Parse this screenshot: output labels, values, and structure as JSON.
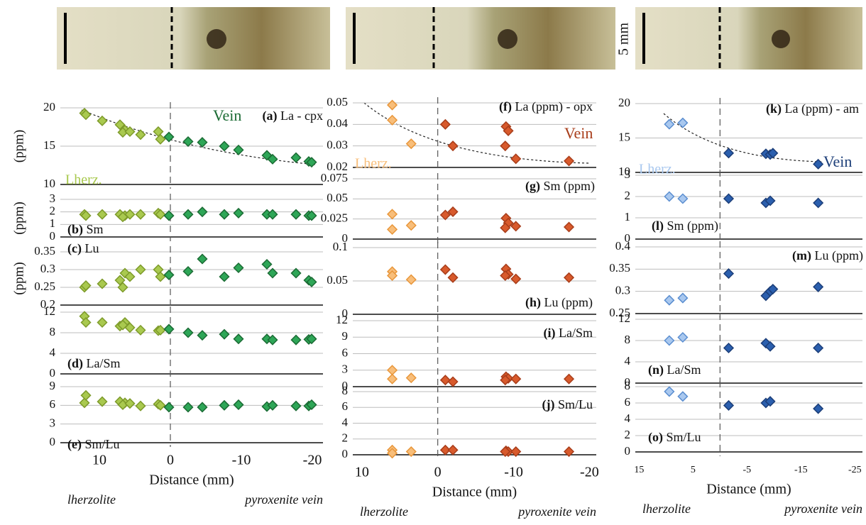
{
  "chart_data": [
    {
      "type": "scatter",
      "tag": "(a)",
      "title": "La - cpx",
      "ylabel": "(ppm)",
      "lherz_label": "Lherz.",
      "vein_label": "Vein",
      "xlim": [
        15.5,
        -21.5
      ],
      "ylim": [
        10,
        20
      ],
      "yticks": [
        10,
        15,
        20
      ],
      "series": [
        {
          "color": "#a9c94f",
          "edgecolor": "#7d9a2a",
          "x": [
            12.1,
            11.9,
            9.6,
            7.1,
            6.4,
            6.7,
            5.7,
            4.2,
            1.7,
            1.4
          ],
          "values": [
            19.3,
            19.1,
            18.3,
            17.8,
            17.1,
            16.8,
            16.9,
            16.5,
            16.9,
            15.9
          ]
        },
        {
          "color": "#2ea657",
          "edgecolor": "#1b6b34",
          "x": [
            0.2,
            -2.5,
            -4.5,
            -7.6,
            -9.6,
            -13.6,
            -14.4,
            -17.7,
            -19.5,
            -19.9
          ],
          "values": [
            16.2,
            15.6,
            15.5,
            15.0,
            14.5,
            13.8,
            13.3,
            13.5,
            13.0,
            12.9
          ]
        }
      ]
    },
    {
      "type": "scatter",
      "tag": "(b)",
      "title": "Sm",
      "ylabel": "(ppm)",
      "xlim": [
        15.5,
        -21.5
      ],
      "ylim": [
        0,
        3
      ],
      "yticks": [
        0,
        1,
        2,
        3
      ],
      "series": [
        {
          "color": "#a9c94f",
          "edgecolor": "#7d9a2a",
          "x": [
            12.1,
            11.9,
            9.6,
            7.1,
            6.4,
            6.7,
            5.7,
            4.2,
            1.7,
            1.4
          ],
          "values": [
            1.8,
            1.7,
            1.8,
            1.8,
            1.7,
            1.6,
            1.8,
            1.8,
            1.9,
            1.8
          ]
        },
        {
          "color": "#2ea657",
          "edgecolor": "#1b6b34",
          "x": [
            0.2,
            -2.5,
            -4.5,
            -7.6,
            -9.6,
            -13.6,
            -14.4,
            -17.7,
            -19.5,
            -19.9
          ],
          "values": [
            1.7,
            1.8,
            2.0,
            1.8,
            1.9,
            1.8,
            1.8,
            1.8,
            1.7,
            1.7
          ]
        }
      ]
    },
    {
      "type": "scatter",
      "tag": "(c)",
      "title": "Lu",
      "ylabel": "(ppm)",
      "xlim": [
        15.5,
        -21.5
      ],
      "ylim": [
        0.2,
        0.35
      ],
      "yticks": [
        0.2,
        0.25,
        0.3,
        0.35
      ],
      "series": [
        {
          "color": "#a9c94f",
          "edgecolor": "#7d9a2a",
          "x": [
            12.1,
            11.9,
            9.6,
            7.1,
            6.4,
            6.7,
            5.7,
            4.2,
            1.7,
            1.4
          ],
          "values": [
            0.25,
            0.255,
            0.26,
            0.27,
            0.29,
            0.25,
            0.28,
            0.3,
            0.3,
            0.28
          ]
        },
        {
          "color": "#2ea657",
          "edgecolor": "#1b6b34",
          "x": [
            0.2,
            -2.5,
            -4.5,
            -7.6,
            -9.6,
            -13.6,
            -14.4,
            -17.7,
            -19.5,
            -19.9
          ],
          "values": [
            0.285,
            0.295,
            0.33,
            0.28,
            0.305,
            0.315,
            0.29,
            0.29,
            0.27,
            0.265
          ]
        }
      ]
    },
    {
      "type": "scatter",
      "tag": "(d)",
      "title": "La/Sm",
      "xlim": [
        15.5,
        -21.5
      ],
      "ylim": [
        0,
        12
      ],
      "yticks": [
        0,
        4,
        8,
        12
      ],
      "series": [
        {
          "color": "#a9c94f",
          "edgecolor": "#7d9a2a",
          "x": [
            12.1,
            11.9,
            9.6,
            7.1,
            6.4,
            6.7,
            5.7,
            4.2,
            1.7,
            1.4
          ],
          "values": [
            11.2,
            10,
            10,
            9.3,
            10,
            9.5,
            9,
            8.5,
            8.4,
            8.5
          ]
        },
        {
          "color": "#2ea657",
          "edgecolor": "#1b6b34",
          "x": [
            0.2,
            -2.5,
            -4.5,
            -7.6,
            -9.6,
            -13.6,
            -14.4,
            -17.7,
            -19.5,
            -19.9
          ],
          "values": [
            8.7,
            8,
            7.5,
            7.7,
            6.8,
            6.8,
            6.6,
            6.6,
            6.7,
            6.8
          ]
        }
      ]
    },
    {
      "type": "scatter",
      "tag": "(e)",
      "title": "Sm/Lu",
      "xlabel": "Distance (mm)",
      "left_note": "lherzolite",
      "right_note": "pyroxenite vein",
      "xlim": [
        15.5,
        -21.5
      ],
      "xticks": [
        10,
        0,
        -10,
        -20
      ],
      "ylim": [
        0,
        9
      ],
      "yticks": [
        0,
        3,
        6,
        9
      ],
      "series": [
        {
          "color": "#a9c94f",
          "edgecolor": "#7d9a2a",
          "x": [
            12.1,
            11.9,
            9.6,
            7.1,
            6.4,
            6.7,
            5.7,
            4.2,
            1.7,
            1.4
          ],
          "values": [
            6.4,
            7.6,
            6.6,
            6.6,
            6.4,
            6.1,
            6.3,
            5.9,
            6.2,
            6.0
          ]
        },
        {
          "color": "#2ea657",
          "edgecolor": "#1b6b34",
          "x": [
            0.2,
            -2.5,
            -4.5,
            -7.6,
            -9.6,
            -13.6,
            -14.4,
            -17.7,
            -19.5,
            -19.9
          ],
          "values": [
            5.7,
            5.7,
            5.7,
            6.0,
            6.1,
            5.8,
            6.0,
            5.9,
            5.9,
            6.1
          ]
        }
      ]
    },
    {
      "type": "scatter",
      "tag": "(f)",
      "title": "La (ppm) - opx",
      "lherz_label": "Lherz.",
      "vein_label": "Vein",
      "xlim": [
        11.2,
        -20.9
      ],
      "ylim": [
        0.02,
        0.05
      ],
      "yticks": [
        0.02,
        0.03,
        0.04,
        0.05
      ],
      "series": [
        {
          "color": "#f8be7a",
          "edgecolor": "#e8963a",
          "x": [
            6.0,
            6.0,
            3.5
          ],
          "values": [
            0.049,
            0.042,
            0.031
          ]
        },
        {
          "color": "#d85a2c",
          "edgecolor": "#a83d1a",
          "x": [
            -1.0,
            -2.0,
            -9.0,
            -9.3,
            -8.9,
            -10.3,
            -17.3
          ],
          "values": [
            0.04,
            0.03,
            0.039,
            0.037,
            0.03,
            0.024,
            0.023
          ]
        }
      ]
    },
    {
      "type": "scatter",
      "tag": "(g)",
      "title": "Sm (ppm)",
      "xlim": [
        11.2,
        -20.9
      ],
      "ylim": [
        0,
        0.075
      ],
      "yticks": [
        0,
        0.025,
        0.05,
        0.075
      ],
      "series": [
        {
          "color": "#f8be7a",
          "edgecolor": "#e8963a",
          "x": [
            6.0,
            6.0,
            3.5
          ],
          "values": [
            0.031,
            0.012,
            0.017
          ]
        },
        {
          "color": "#d85a2c",
          "edgecolor": "#a83d1a",
          "x": [
            -1.0,
            -2.0,
            -9.0,
            -9.3,
            -8.9,
            -10.3,
            -17.3
          ],
          "values": [
            0.03,
            0.034,
            0.026,
            0.02,
            0.014,
            0.016,
            0.015
          ]
        }
      ]
    },
    {
      "type": "scatter",
      "tag": "(h)",
      "title": "Lu (ppm)",
      "xlim": [
        11.2,
        -20.9
      ],
      "ylim": [
        0,
        0.1
      ],
      "yticks": [
        0,
        0.05,
        0.1
      ],
      "series": [
        {
          "color": "#f8be7a",
          "edgecolor": "#e8963a",
          "x": [
            6.0,
            6.0,
            3.5
          ],
          "values": [
            0.064,
            0.058,
            0.052
          ]
        },
        {
          "color": "#d85a2c",
          "edgecolor": "#a83d1a",
          "x": [
            -1.0,
            -2.0,
            -9.0,
            -9.3,
            -8.9,
            -10.3,
            -17.3
          ],
          "values": [
            0.067,
            0.055,
            0.068,
            0.06,
            0.058,
            0.053,
            0.055
          ]
        }
      ]
    },
    {
      "type": "scatter",
      "tag": "(i)",
      "title": "La/Sm",
      "xlim": [
        11.2,
        -20.9
      ],
      "ylim": [
        0,
        12
      ],
      "yticks": [
        0,
        3,
        6,
        9,
        12
      ],
      "series": [
        {
          "color": "#f8be7a",
          "edgecolor": "#e8963a",
          "x": [
            6.0,
            6.0,
            3.5
          ],
          "values": [
            3.0,
            1.4,
            1.6
          ]
        },
        {
          "color": "#d85a2c",
          "edgecolor": "#a83d1a",
          "x": [
            -1.0,
            -2.0,
            -9.0,
            -9.3,
            -8.9,
            -10.3,
            -17.3
          ],
          "values": [
            1.2,
            0.9,
            1.8,
            1.5,
            1.2,
            1.4,
            1.4
          ]
        }
      ]
    },
    {
      "type": "scatter",
      "tag": "(j)",
      "title": "Sm/Lu",
      "xlabel": "Distance (mm)",
      "left_note": "lherzolite",
      "right_note": "pyroxenite vein",
      "xlim": [
        11.2,
        -20.9
      ],
      "xticks": [
        10,
        0,
        -10,
        -20
      ],
      "ylim": [
        0,
        8
      ],
      "yticks": [
        0,
        2,
        4,
        6,
        8
      ],
      "series": [
        {
          "color": "#f8be7a",
          "edgecolor": "#e8963a",
          "x": [
            6.0,
            6.0,
            3.5
          ],
          "values": [
            0.6,
            0.2,
            0.4
          ]
        },
        {
          "color": "#d85a2c",
          "edgecolor": "#a83d1a",
          "x": [
            -1.0,
            -2.0,
            -9.0,
            -9.3,
            -8.9,
            -10.3,
            -17.3
          ],
          "values": [
            0.6,
            0.6,
            0.5,
            0.4,
            0.4,
            0.4,
            0.4
          ]
        }
      ]
    },
    {
      "type": "scatter",
      "tag": "(k)",
      "title": "La (ppm) - am",
      "lherz_label": "Lherz.",
      "vein_label": "Vein",
      "xlim": [
        15.7,
        -26.4
      ],
      "ylim": [
        10,
        20
      ],
      "yticks": [
        10,
        15,
        20
      ],
      "series": [
        {
          "color": "#a9c8ef",
          "edgecolor": "#5b8ed0",
          "x": [
            9.4,
            6.9
          ],
          "values": [
            17.0,
            17.2
          ]
        },
        {
          "color": "#2b5fae",
          "edgecolor": "#1c3e78",
          "x": [
            -1.6,
            -8.5,
            -9.3,
            -9.8,
            -18.2
          ],
          "values": [
            12.8,
            12.7,
            12.6,
            12.8,
            11.2
          ]
        }
      ]
    },
    {
      "type": "scatter",
      "tag": "(l)",
      "title": "Sm (ppm)",
      "xlim": [
        15.7,
        -26.4
      ],
      "ylim": [
        0,
        3
      ],
      "yticks": [
        0,
        1,
        2,
        3
      ],
      "series": [
        {
          "color": "#a9c8ef",
          "edgecolor": "#5b8ed0",
          "x": [
            9.4,
            6.9
          ],
          "values": [
            2.0,
            1.9
          ]
        },
        {
          "color": "#2b5fae",
          "edgecolor": "#1c3e78",
          "x": [
            -1.6,
            -8.5,
            -9.3,
            -18.2
          ],
          "values": [
            1.9,
            1.7,
            1.8,
            1.7
          ]
        }
      ]
    },
    {
      "type": "scatter",
      "tag": "(m)",
      "title": "Lu (ppm)",
      "xlim": [
        15.7,
        -26.4
      ],
      "ylim": [
        0.25,
        0.4
      ],
      "yticks": [
        0.25,
        0.3,
        0.35,
        0.4
      ],
      "series": [
        {
          "color": "#a9c8ef",
          "edgecolor": "#5b8ed0",
          "x": [
            9.4,
            6.9
          ],
          "values": [
            0.28,
            0.285
          ]
        },
        {
          "color": "#2b5fae",
          "edgecolor": "#1c3e78",
          "x": [
            -1.6,
            -8.5,
            -9.3,
            -9.8,
            -18.2
          ],
          "values": [
            0.34,
            0.29,
            0.3,
            0.305,
            0.31
          ]
        }
      ]
    },
    {
      "type": "scatter",
      "tag": "(n)",
      "title": "La/Sm",
      "xlim": [
        15.7,
        -26.4
      ],
      "ylim": [
        0,
        12
      ],
      "yticks": [
        0,
        4,
        8,
        12
      ],
      "series": [
        {
          "color": "#a9c8ef",
          "edgecolor": "#5b8ed0",
          "x": [
            9.4,
            6.9
          ],
          "values": [
            8.0,
            8.6
          ]
        },
        {
          "color": "#2b5fae",
          "edgecolor": "#1c3e78",
          "x": [
            -1.6,
            -8.5,
            -9.3,
            -18.2
          ],
          "values": [
            6.6,
            7.5,
            6.9,
            6.6
          ]
        }
      ]
    },
    {
      "type": "scatter",
      "tag": "(o)",
      "title": "Sm/Lu",
      "xlabel": "Distance (mm)",
      "left_note": "lherzolite",
      "right_note": "pyroxenite vein",
      "xlim": [
        15.7,
        -26.4
      ],
      "xticks": [
        15,
        5,
        -5,
        -15,
        -25
      ],
      "ylim": [
        0,
        8
      ],
      "yticks": [
        0,
        2,
        4,
        6,
        8
      ],
      "series": [
        {
          "color": "#a9c8ef",
          "edgecolor": "#5b8ed0",
          "x": [
            9.4,
            6.9
          ],
          "values": [
            7.4,
            6.8
          ]
        },
        {
          "color": "#2b5fae",
          "edgecolor": "#1c3e78",
          "x": [
            -1.6,
            -8.5,
            -9.3,
            -18.2
          ],
          "values": [
            5.7,
            6.0,
            6.2,
            5.3
          ]
        }
      ]
    }
  ],
  "scale_label": "5 mm"
}
